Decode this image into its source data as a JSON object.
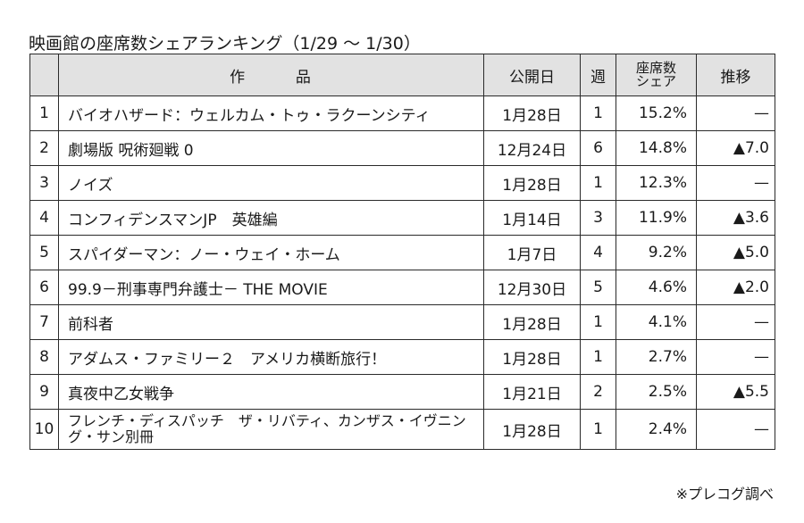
{
  "title": "映画館の座席数シェアランキング（1/29 ～ 1/30）",
  "headers": {
    "rank": "",
    "title_a": "作",
    "title_b": "品",
    "release": "公開日",
    "week": "週",
    "share_line1": "座席数",
    "share_line2": "シェア",
    "trend": "推移"
  },
  "rows": [
    {
      "rank": "1",
      "title": "バイオハザード：ウェルカム・トゥ・ラクーンシティ",
      "release": "1月28日",
      "week": "1",
      "share": "15.2%",
      "trend": "—"
    },
    {
      "rank": "2",
      "title": "劇場版 呪術廻戦 0",
      "release": "12月24日",
      "week": "6",
      "share": "14.8%",
      "trend": "▲7.0"
    },
    {
      "rank": "3",
      "title": "ノイズ",
      "release": "1月28日",
      "week": "1",
      "share": "12.3%",
      "trend": "—"
    },
    {
      "rank": "4",
      "title": "コンフィデンスマンJP　英雄編",
      "release": "1月14日",
      "week": "3",
      "share": "11.9%",
      "trend": "▲3.6"
    },
    {
      "rank": "5",
      "title": "スパイダーマン：ノー・ウェイ・ホーム",
      "release": "1月7日",
      "week": "4",
      "share": "9.2%",
      "trend": "▲5.0"
    },
    {
      "rank": "6",
      "title": "99.9－刑事専門弁護士－ THE MOVIE",
      "release": "12月30日",
      "week": "5",
      "share": "4.6%",
      "trend": "▲2.0"
    },
    {
      "rank": "7",
      "title": "前科者",
      "release": "1月28日",
      "week": "1",
      "share": "4.1%",
      "trend": "—"
    },
    {
      "rank": "8",
      "title": "アダムス・ファミリー２　アメリカ横断旅行！",
      "release": "1月28日",
      "week": "1",
      "share": "2.7%",
      "trend": "—"
    },
    {
      "rank": "9",
      "title": "真夜中乙女戦争",
      "release": "1月21日",
      "week": "2",
      "share": "2.5%",
      "trend": "▲5.5"
    },
    {
      "rank": "10",
      "title": "フレンチ・ディスパッチ　ザ・リバティ、カンザス・イヴニング・サン別冊",
      "release": "1月28日",
      "week": "1",
      "share": "2.4%",
      "trend": "—"
    }
  ],
  "note": "※プレコグ調べ"
}
